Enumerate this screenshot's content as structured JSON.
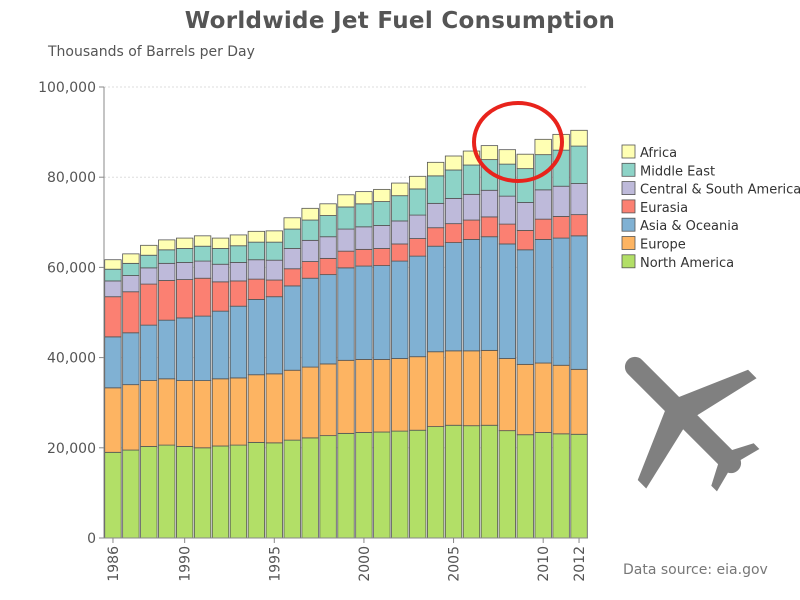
{
  "chart_data": {
    "type": "bar",
    "stacked": true,
    "title": "Worldwide Jet Fuel Consumption",
    "ylabel": "Thousands of Barrels per Day",
    "xlabel": "",
    "ylim": [
      0,
      100000
    ],
    "yticks": [
      0,
      20000,
      40000,
      60000,
      80000,
      100000
    ],
    "ytick_labels": [
      "0",
      "20,000",
      "40,000",
      "60,000",
      "80,000",
      "100,000"
    ],
    "xtick_years": [
      1986,
      1990,
      1995,
      2000,
      2005,
      2010,
      2012
    ],
    "categories": [
      1986,
      1987,
      1988,
      1989,
      1990,
      1991,
      1992,
      1993,
      1994,
      1995,
      1996,
      1997,
      1998,
      1999,
      2000,
      2001,
      2002,
      2003,
      2004,
      2005,
      2006,
      2007,
      2008,
      2009,
      2010,
      2011,
      2012
    ],
    "series": [
      {
        "name": "North America",
        "color": "#b2df67",
        "values": [
          19000,
          19500,
          20300,
          20600,
          20300,
          20000,
          20400,
          20600,
          21200,
          21100,
          21700,
          22200,
          22700,
          23200,
          23400,
          23500,
          23700,
          23900,
          24700,
          25000,
          24900,
          25000,
          23800,
          22900,
          23400,
          23100,
          23000
        ]
      },
      {
        "name": "Europe",
        "color": "#fdb462",
        "values": [
          14300,
          14500,
          14600,
          14700,
          14600,
          14900,
          14900,
          14900,
          15000,
          15300,
          15500,
          15700,
          15900,
          16200,
          16200,
          16100,
          16100,
          16300,
          16600,
          16500,
          16600,
          16600,
          16000,
          15600,
          15400,
          15200,
          14400
        ]
      },
      {
        "name": "Asia & Oceania",
        "color": "#80b1d3",
        "values": [
          11300,
          11500,
          12300,
          13000,
          13900,
          14300,
          15000,
          15900,
          16700,
          17100,
          18700,
          19700,
          19800,
          20500,
          20700,
          20800,
          21600,
          22300,
          23400,
          24000,
          24700,
          25200,
          25400,
          25400,
          27400,
          28200,
          29600
        ]
      },
      {
        "name": "Eurasia",
        "color": "#fb8072",
        "values": [
          8900,
          9100,
          9100,
          8800,
          8500,
          8400,
          6500,
          5600,
          4500,
          3700,
          3800,
          3700,
          3600,
          3700,
          3700,
          3800,
          3800,
          3900,
          4100,
          4200,
          4300,
          4400,
          4400,
          4300,
          4500,
          4800,
          4700
        ]
      },
      {
        "name": "Central & South America",
        "color": "#bebada",
        "values": [
          3500,
          3600,
          3600,
          3800,
          3800,
          3800,
          3900,
          4100,
          4300,
          4400,
          4500,
          4700,
          4800,
          4900,
          5000,
          5100,
          5100,
          5200,
          5400,
          5600,
          5700,
          5900,
          6200,
          6200,
          6500,
          6700,
          6900
        ]
      },
      {
        "name": "Middle East",
        "color": "#8dd3c7",
        "values": [
          2600,
          2700,
          2800,
          3000,
          3100,
          3300,
          3500,
          3700,
          3900,
          4000,
          4300,
          4500,
          4700,
          4900,
          5100,
          5300,
          5600,
          5800,
          6100,
          6300,
          6500,
          6800,
          7100,
          7500,
          7800,
          8000,
          8300
        ]
      },
      {
        "name": "Africa",
        "color": "#ffffb3",
        "values": [
          2100,
          2100,
          2200,
          2200,
          2300,
          2300,
          2300,
          2400,
          2400,
          2500,
          2500,
          2600,
          2600,
          2700,
          2700,
          2700,
          2800,
          2800,
          3000,
          3100,
          3100,
          3100,
          3200,
          3200,
          3400,
          3500,
          3500
        ]
      }
    ],
    "legend_position": "right",
    "grid": "horizontal dotted",
    "annotation": "red circle around 2008-2011 bar tops"
  },
  "source_text": "Data source: eia.gov",
  "decoration": {
    "icon": "airplane-icon",
    "icon_color": "#808080",
    "circle_color": "#e8231c"
  }
}
